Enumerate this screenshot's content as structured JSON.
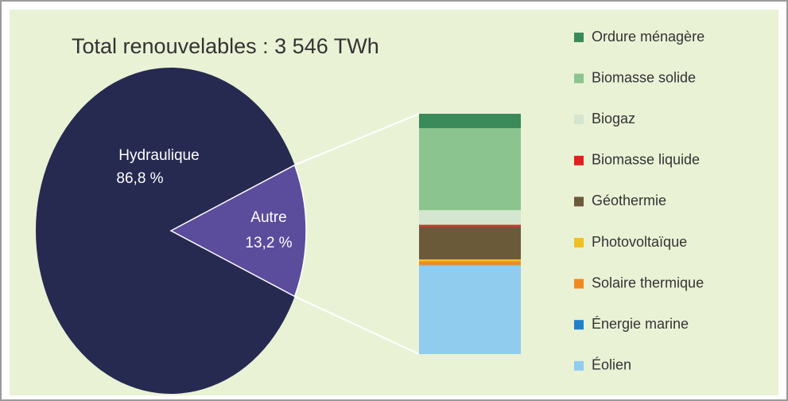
{
  "chart_data": {
    "type": "pie",
    "title": "Total renouvelables : 3 546 TWh",
    "categories": [
      "Hydraulique",
      "Autre"
    ],
    "values": [
      86.8,
      13.2
    ],
    "value_labels": [
      "86,8 %",
      "13,2 %"
    ],
    "colors": [
      "#262a50",
      "#5b4c9c"
    ],
    "breakdown": {
      "categories": [
        "Ordure ménagère",
        "Biomasse solide",
        "Biogaz",
        "Biomasse liquide",
        "Géothermie",
        "Photovoltaïque",
        "Solaire thermique",
        "Énergie marine",
        "Éolien"
      ],
      "values": [
        0.8,
        4.5,
        0.8,
        0.1,
        1.8,
        0.1,
        0.2,
        0.02,
        4.88
      ],
      "colors": [
        "#3a8a5a",
        "#8cc48f",
        "#d4e6d0",
        "#e02020",
        "#6b5a3a",
        "#f0c020",
        "#f08a20",
        "#2080c8",
        "#90ccee"
      ]
    }
  }
}
